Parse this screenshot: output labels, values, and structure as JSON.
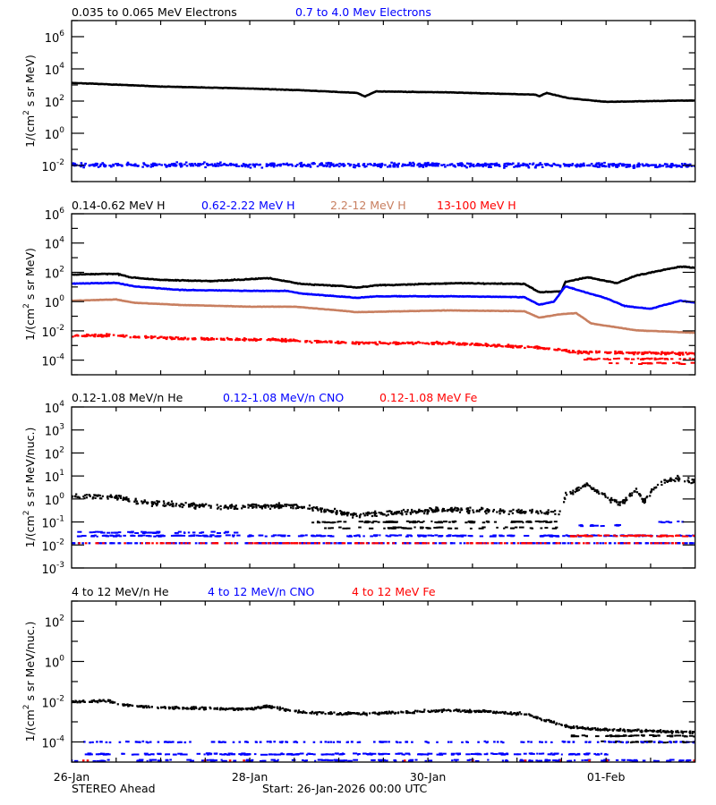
{
  "colors": {
    "black": "#000000",
    "blue": "#0000ff",
    "brown": "#c87f60",
    "red": "#ff0000"
  },
  "footer": {
    "spacecraft": "STEREO Ahead",
    "start": "Start: 26-Jan-2026 00:00 UTC"
  },
  "chart_data": [
    {
      "type": "line",
      "ylabel_parts": [
        "1/(cm",
        "2",
        " s sr MeV)"
      ],
      "yscale": "log",
      "ylim": [
        0.001,
        10000000
      ],
      "yticks_exp": [
        6,
        4,
        2,
        0,
        -2
      ],
      "xlim": [
        "2026-01-26 00:00",
        "2026-02-02 00:00"
      ],
      "xtick_labels": [],
      "series": [
        {
          "name": "0.035 to 0.065 MeV Electrons",
          "color": "#000000",
          "style": "line",
          "points": [
            [
              "2026-01-26 00:00",
              1350
            ],
            [
              "2026-01-26 14:00",
              1000
            ],
            [
              "2026-01-27 00:00",
              800
            ],
            [
              "2026-01-28 00:00",
              600
            ],
            [
              "2026-01-28 14:00",
              470
            ],
            [
              "2026-01-29 05:00",
              320
            ],
            [
              "2026-01-29 07:00",
              190
            ],
            [
              "2026-01-29 10:00",
              400
            ],
            [
              "2026-01-30 05:00",
              350
            ],
            [
              "2026-01-31 05:00",
              250
            ],
            [
              "2026-01-31 06:00",
              200
            ],
            [
              "2026-01-31 08:00",
              320
            ],
            [
              "2026-01-31 14:00",
              150
            ],
            [
              "2026-02-01 00:00",
              90
            ],
            [
              "2026-02-02 00:00",
              110
            ]
          ]
        },
        {
          "name": "0.7 to 4.0 Mev Electrons",
          "color": "#0000ff",
          "style": "scatter",
          "points": [
            [
              "2026-01-26 00:00",
              0.011
            ],
            [
              "2026-01-29 00:00",
              0.011
            ],
            [
              "2026-02-02 00:00",
              0.01
            ]
          ]
        }
      ]
    },
    {
      "type": "line",
      "ylabel_parts": [
        "1/(cm",
        "2",
        " s sr MeV)"
      ],
      "yscale": "log",
      "ylim": [
        1e-05,
        1000000
      ],
      "yticks_exp": [
        6,
        4,
        2,
        0,
        -2,
        -4
      ],
      "xlim": [
        "2026-01-26 00:00",
        "2026-02-02 00:00"
      ],
      "xtick_labels": [],
      "series": [
        {
          "name": "0.14-0.62 MeV H",
          "color": "#000000",
          "style": "line",
          "points": [
            [
              "2026-01-26 00:00",
              70
            ],
            [
              "2026-01-26 12:00",
              80
            ],
            [
              "2026-01-26 16:00",
              45
            ],
            [
              "2026-01-27 00:00",
              30
            ],
            [
              "2026-01-27 14:00",
              25
            ],
            [
              "2026-01-28 05:00",
              40
            ],
            [
              "2026-01-28 14:00",
              16
            ],
            [
              "2026-01-29 02:00",
              11
            ],
            [
              "2026-01-29 05:00",
              9
            ],
            [
              "2026-01-29 10:00",
              13
            ],
            [
              "2026-01-30 07:00",
              18
            ],
            [
              "2026-01-31 02:00",
              16
            ],
            [
              "2026-01-31 06:00",
              4.3
            ],
            [
              "2026-01-31 12:00",
              5
            ],
            [
              "2026-01-31 13:00",
              22
            ],
            [
              "2026-01-31 19:00",
              45
            ],
            [
              "2026-02-01 03:00",
              18
            ],
            [
              "2026-02-01 08:00",
              60
            ],
            [
              "2026-02-01 20:00",
              250
            ],
            [
              "2026-02-02 00:00",
              200
            ]
          ]
        },
        {
          "name": "0.62-2.22 MeV H",
          "color": "#0000ff",
          "style": "line",
          "points": [
            [
              "2026-01-26 00:00",
              17
            ],
            [
              "2026-01-26 12:00",
              19
            ],
            [
              "2026-01-26 17:00",
              11
            ],
            [
              "2026-01-27 05:00",
              6.3
            ],
            [
              "2026-01-28 00:00",
              5.4
            ],
            [
              "2026-01-28 10:00",
              5.4
            ],
            [
              "2026-01-28 14:00",
              3.5
            ],
            [
              "2026-01-29 05:00",
              1.8
            ],
            [
              "2026-01-29 10:00",
              2.3
            ],
            [
              "2026-01-30 07:00",
              2.3
            ],
            [
              "2026-01-31 02:00",
              2
            ],
            [
              "2026-01-31 06:00",
              0.6
            ],
            [
              "2026-01-31 10:00",
              1.0
            ],
            [
              "2026-01-31 13:00",
              11
            ],
            [
              "2026-02-01 00:00",
              1.7
            ],
            [
              "2026-02-01 05:00",
              0.5
            ],
            [
              "2026-02-01 12:00",
              0.32
            ],
            [
              "2026-02-01 20:00",
              1.15
            ],
            [
              "2026-02-02 00:00",
              0.85
            ]
          ]
        },
        {
          "name": "2.2-12 MeV H",
          "color": "#c87f60",
          "style": "line",
          "points": [
            [
              "2026-01-26 00:00",
              1.15
            ],
            [
              "2026-01-26 12:00",
              1.4
            ],
            [
              "2026-01-26 17:00",
              0.83
            ],
            [
              "2026-01-27 05:00",
              0.59
            ],
            [
              "2026-01-28 00:00",
              0.45
            ],
            [
              "2026-01-28 12:00",
              0.45
            ],
            [
              "2026-01-28 19:00",
              0.32
            ],
            [
              "2026-01-29 05:00",
              0.19
            ],
            [
              "2026-01-30 05:00",
              0.25
            ],
            [
              "2026-01-31 02:00",
              0.22
            ],
            [
              "2026-01-31 06:00",
              0.08
            ],
            [
              "2026-01-31 12:00",
              0.14
            ],
            [
              "2026-01-31 16:00",
              0.16
            ],
            [
              "2026-01-31 20:00",
              0.032
            ],
            [
              "2026-02-01 08:00",
              0.011
            ],
            [
              "2026-02-02 00:00",
              0.0074
            ]
          ]
        },
        {
          "name": "13-100 MeV H",
          "color": "#ff0000",
          "style": "scatter",
          "points": [
            [
              "2026-01-26 00:00",
              0.0047
            ],
            [
              "2026-01-26 12:00",
              0.005
            ],
            [
              "2026-01-27 05:00",
              0.0029
            ],
            [
              "2026-01-28 05:00",
              0.0025
            ],
            [
              "2026-01-29 05:00",
              0.0015
            ],
            [
              "2026-01-30 05:00",
              0.0015
            ],
            [
              "2026-01-31 05:00",
              0.00074
            ],
            [
              "2026-01-31 17:00",
              0.00035
            ],
            [
              "2026-02-02 00:00",
              0.00028
            ]
          ],
          "floor_levels": [
            [
              0.00012,
              "2026-01-31 18:00",
              "2026-02-02 00:00"
            ],
            [
              6e-05,
              "2026-02-01 00:00",
              "2026-02-02 00:00"
            ]
          ]
        }
      ]
    },
    {
      "type": "scatter",
      "ylabel_parts": [
        "1/(cm",
        "2",
        " s sr MeV/nuc.)"
      ],
      "yscale": "log",
      "ylim": [
        0.001,
        10000
      ],
      "yticks_exp": [
        4,
        3,
        2,
        1,
        0,
        -1,
        -2,
        -3
      ],
      "xlim": [
        "2026-01-26 00:00",
        "2026-02-02 00:00"
      ],
      "xtick_labels": [],
      "series": [
        {
          "name": "0.12-1.08 MeV/n He",
          "color": "#000000",
          "style": "scatter",
          "points": [
            [
              "2026-01-26 00:00",
              1.3
            ],
            [
              "2026-01-26 12:00",
              1.3
            ],
            [
              "2026-01-26 19:00",
              0.7
            ],
            [
              "2026-01-27 17:00",
              0.45
            ],
            [
              "2026-01-28 12:00",
              0.5
            ],
            [
              "2026-01-28 22:00",
              0.28
            ],
            [
              "2026-01-29 05:00",
              0.2
            ],
            [
              "2026-01-30 05:00",
              0.35
            ],
            [
              "2026-01-31 12:00",
              0.25
            ],
            [
              "2026-01-31 13:00",
              1.5
            ],
            [
              "2026-01-31 19:00",
              4.5
            ],
            [
              "2026-02-01 02:00",
              0.74
            ],
            [
              "2026-02-01 04:00",
              0.63
            ],
            [
              "2026-02-01 08:00",
              2.5
            ],
            [
              "2026-02-01 10:00",
              0.8
            ],
            [
              "2026-02-01 14:00",
              5
            ],
            [
              "2026-02-01 19:00",
              8
            ],
            [
              "2026-02-02 00:00",
              5.6
            ]
          ],
          "floor_levels": [
            [
              0.1,
              "2026-01-28 16:00",
              "2026-01-31 12:00"
            ],
            [
              0.055,
              "2026-01-28 20:00",
              "2026-01-31 12:00"
            ]
          ]
        },
        {
          "name": "0.12-1.08 MeV/n CNO",
          "color": "#0000ff",
          "style": "scatter",
          "points": [
            [
              "2026-01-26 00:00",
              0.012
            ],
            [
              "2026-02-02 00:00",
              0.012
            ]
          ],
          "floor_levels": [
            [
              0.025,
              "2026-01-26 00:00",
              "2026-02-02 00:00"
            ],
            [
              0.035,
              "2026-01-26 00:00",
              "2026-01-28 00:00"
            ],
            [
              0.07,
              "2026-01-31 14:00",
              "2026-02-01 04:00"
            ],
            [
              0.1,
              "2026-02-01 14:00",
              "2026-02-02 00:00"
            ]
          ]
        },
        {
          "name": "0.12-1.08 MeV Fe",
          "color": "#ff0000",
          "style": "scatter",
          "points": [
            [
              "2026-01-26 00:00",
              0.012
            ],
            [
              "2026-02-02 00:00",
              0.012
            ]
          ],
          "floor_levels": [
            [
              0.025,
              "2026-01-31 12:00",
              "2026-02-02 00:00"
            ]
          ]
        }
      ]
    },
    {
      "type": "scatter",
      "ylabel_parts": [
        "1/(cm",
        "2",
        " s sr MeV/nuc.)"
      ],
      "yscale": "log",
      "ylim": [
        1e-05,
        1000
      ],
      "yticks_exp": [
        2,
        0,
        -2,
        -4
      ],
      "xlim": [
        "2026-01-26 00:00",
        "2026-02-02 00:00"
      ],
      "xtick_labels": [
        {
          "label": "26-Jan",
          "at": "2026-01-26 00:00"
        },
        {
          "label": "28-Jan",
          "at": "2026-01-28 00:00"
        },
        {
          "label": "30-Jan",
          "at": "2026-01-30 00:00"
        },
        {
          "label": "01-Feb",
          "at": "2026-02-01 00:00"
        }
      ],
      "series": [
        {
          "name": "4 to 12 MeV/n He",
          "color": "#000000",
          "style": "scatter",
          "points": [
            [
              "2026-01-26 00:00",
              0.01
            ],
            [
              "2026-01-26 10:00",
              0.011
            ],
            [
              "2026-01-26 14:00",
              0.007
            ],
            [
              "2026-01-27 00:00",
              0.005
            ],
            [
              "2026-01-28 00:00",
              0.0043
            ],
            [
              "2026-01-28 05:00",
              0.006
            ],
            [
              "2026-01-28 14:00",
              0.003
            ],
            [
              "2026-01-29 05:00",
              0.0025
            ],
            [
              "2026-01-30 07:00",
              0.0038
            ],
            [
              "2026-01-31 02:00",
              0.0025
            ],
            [
              "2026-01-31 07:00",
              0.0013
            ],
            [
              "2026-01-31 14:00",
              0.00055
            ],
            [
              "2026-02-01 00:00",
              0.0004
            ],
            [
              "2026-02-02 00:00",
              0.0003
            ]
          ],
          "floor_levels": [
            [
              0.0002,
              "2026-01-31 14:00",
              "2026-02-02 00:00"
            ],
            [
              0.0001,
              "2026-01-31 16:00",
              "2026-02-02 00:00"
            ]
          ]
        },
        {
          "name": "4 to 12 MeV/n CNO",
          "color": "#0000ff",
          "style": "scatter",
          "points": [
            [
              "2026-01-26 00:00",
              0.0001
            ],
            [
              "2026-01-31 12:00",
              0.0001
            ],
            [
              "2026-02-02 00:00",
              0.0001
            ]
          ],
          "floor_levels": [
            [
              2.5e-05,
              "2026-01-26 00:00",
              "2026-02-01 00:00"
            ],
            [
              1.2e-05,
              "2026-01-26 00:00",
              "2026-02-02 00:00"
            ]
          ]
        },
        {
          "name": "4 to 12 MeV Fe",
          "color": "#ff0000",
          "style": "scatter",
          "points": [
            [
              "2026-01-26 00:00",
              1.2e-05
            ],
            [
              "2026-02-02 00:00",
              1.2e-05
            ]
          ]
        }
      ]
    }
  ]
}
